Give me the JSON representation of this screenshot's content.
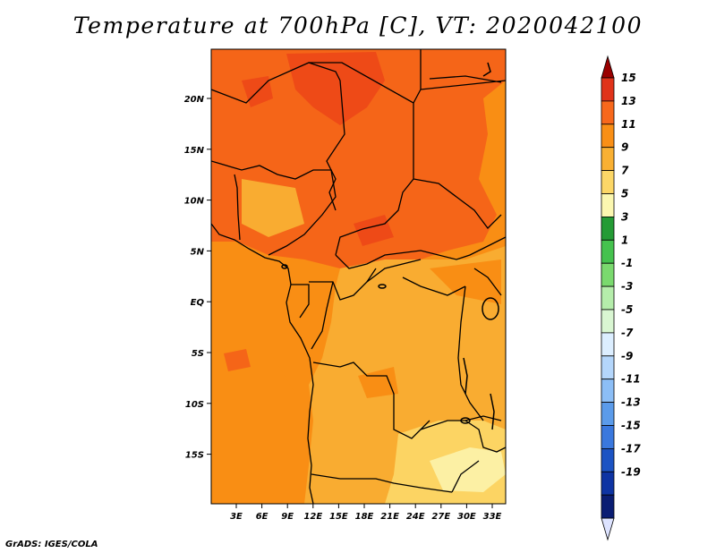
{
  "title": "Temperature at 700hPa [C], VT: 2020042100",
  "credit": "GrADS: IGES/COLA",
  "map": {
    "lat_ticks": [
      "20N",
      "15N",
      "10N",
      "5N",
      "EQ",
      "5S",
      "10S",
      "15S"
    ],
    "lon_ticks": [
      "3E",
      "6E",
      "9E",
      "12E",
      "15E",
      "18E",
      "21E",
      "24E",
      "27E",
      "30E",
      "33E"
    ]
  },
  "colorbar": {
    "labels": [
      "15",
      "13",
      "11",
      "9",
      "7",
      "5",
      "3",
      "1",
      "-1",
      "-3",
      "-5",
      "-7",
      "-9",
      "-11",
      "-13",
      "-15",
      "-17",
      "-19"
    ],
    "colors": [
      "#9a0000",
      "#e0331a",
      "#f7681c",
      "#f98f16",
      "#f9b033",
      "#fcd767",
      "#fbf7b0",
      "#249b35",
      "#45c24e",
      "#7ad96e",
      "#b5edab",
      "#d9f6d2",
      "#dceeff",
      "#b4d6fb",
      "#8cbef6",
      "#5b9bea",
      "#3a78de",
      "#1c53c3",
      "#0e34a3",
      "#0a1d73",
      "#dde3ff"
    ]
  },
  "field_colors": {
    "land_hot": "#f56518",
    "land_hotter": "#ee4a17",
    "warm": "#f98e14",
    "mild": "#f9ac31",
    "cool": "#fcd463",
    "coolest": "#fcf0a4"
  }
}
